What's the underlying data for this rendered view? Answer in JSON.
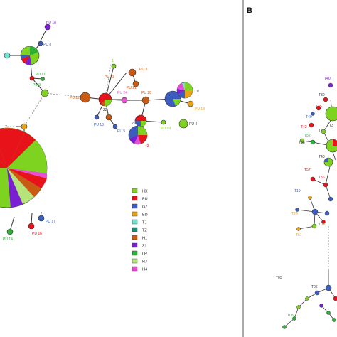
{
  "panels": [
    {
      "letter": "B"
    }
  ],
  "legend": [
    {
      "label": "HX",
      "color": "#7ed321"
    },
    {
      "label": "PU",
      "color": "#e8121a"
    },
    {
      "label": "GZ",
      "color": "#3d5dbe"
    },
    {
      "label": "BD",
      "color": "#e8a317"
    },
    {
      "label": "TJ",
      "color": "#73e0d1"
    },
    {
      "label": "TZ",
      "color": "#1d8a73"
    },
    {
      "label": "H1",
      "color": "#c85a14"
    },
    {
      "label": "Z1",
      "color": "#7a1fd1"
    },
    {
      "label": "LR",
      "color": "#2fae3a"
    },
    {
      "label": "RJ",
      "color": "#b6e37a"
    },
    {
      "label": "H4",
      "color": "#e94fd4"
    }
  ],
  "node_labels_a": [
    {
      "text": "PU 10",
      "color": "#7a1fd1"
    },
    {
      "text": "PU 8",
      "color": "#3d5dbe"
    },
    {
      "text": "PU 11",
      "color": "#2fae3a"
    },
    {
      "text": "PU 9",
      "color": "#2fae3a"
    },
    {
      "text": "1",
      "color": "#7ed321"
    },
    {
      "text": "PU 23",
      "color": "#c85a14"
    },
    {
      "text": "PU 3",
      "color": "#c85a14"
    },
    {
      "text": "PU 22",
      "color": "#c85a14"
    },
    {
      "text": "PU 21",
      "color": "#c85a14"
    },
    {
      "text": "PU 24",
      "color": "#e94fd4"
    },
    {
      "text": "PU 20",
      "color": "#c85a14"
    },
    {
      "text": "22",
      "color": "#333333"
    },
    {
      "text": "10",
      "color": "#333333"
    },
    {
      "text": "PU 18",
      "color": "#e8a317"
    },
    {
      "text": "PU 13",
      "color": "#3d5dbe"
    },
    {
      "text": "PU 5",
      "color": "#3d5dbe"
    },
    {
      "text": "26",
      "color": "#333333"
    },
    {
      "text": "PU 19",
      "color": "#7ed321"
    },
    {
      "text": "PU 4",
      "color": "#333333"
    },
    {
      "text": "43",
      "color": "#e8121a"
    },
    {
      "text": "7",
      "color": "#333333"
    },
    {
      "text": "PU 17",
      "color": "#3d5dbe"
    },
    {
      "text": "PU 16",
      "color": "#e8121a"
    },
    {
      "text": "PU 14",
      "color": "#2fae3a"
    }
  ],
  "node_labels_b": [
    {
      "text": "T40",
      "color": "#7a1fd1"
    },
    {
      "text": "T39",
      "color": "#333333"
    },
    {
      "text": "T3",
      "color": "#333333"
    },
    {
      "text": "T35",
      "color": "#e8121a"
    },
    {
      "text": "T49",
      "color": "#3d5dbe"
    },
    {
      "text": "T42",
      "color": "#e8121a"
    },
    {
      "text": "T7",
      "color": "#333333"
    },
    {
      "text": "T52",
      "color": "#2fae3a"
    },
    {
      "text": "T38",
      "color": "#333333"
    },
    {
      "text": "T40",
      "color": "#333333"
    },
    {
      "text": "T57",
      "color": "#e8121a"
    },
    {
      "text": "T56",
      "color": "#e8121a"
    },
    {
      "text": "T19",
      "color": "#3d5dbe"
    },
    {
      "text": "T23",
      "color": "#e8a317"
    },
    {
      "text": "T09",
      "color": "#c85a14"
    },
    {
      "text": "T61",
      "color": "#e8a317"
    },
    {
      "text": "T03",
      "color": "#333333"
    },
    {
      "text": "T06",
      "color": "#333333"
    },
    {
      "text": "T08",
      "color": "#2fae3a"
    }
  ]
}
